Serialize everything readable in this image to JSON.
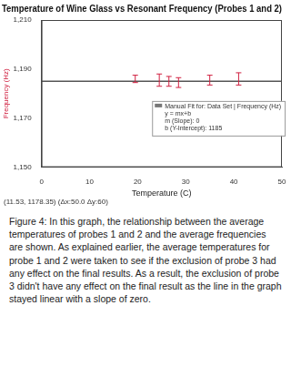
{
  "chart_data": {
    "type": "scatter",
    "title": "Temperature of Wine Glass vs Resonant Frequency (Probes 1 and 2)",
    "x_label": "Temperature (C)",
    "y_label": "Frequency (Hz)",
    "series": [
      {
        "name": "Data Set",
        "type": "scatter",
        "color": "#d02040",
        "marker": "none",
        "x": [
          19.5,
          24.5,
          26.5,
          28.5,
          35,
          41
        ],
        "values": [
          1186,
          1185.5,
          1185,
          1184.5,
          1185.5,
          1186
        ],
        "errors": [
          1.5,
          2.5,
          2,
          2,
          2,
          2.5
        ]
      },
      {
        "type": "line",
        "color": "#555555",
        "x": [
          0,
          50
        ],
        "values": [
          1185,
          1185
        ]
      }
    ],
    "xlim": [
      0,
      50
    ],
    "xticks": [
      0,
      10,
      20,
      30,
      40,
      50
    ],
    "ylim": [
      1150,
      1210
    ],
    "yticks": [
      1150,
      1170,
      1190,
      1210
    ],
    "grid": false,
    "annotations": [
      "Manual Fit for: Data Set | Frequency (Hz)",
      "y = mx+b",
      "m (Slope): 0",
      "b (Y-Intercept): 1185",
      "(11.53, 1178.35) (Δx:50.0 Δy:60)"
    ]
  },
  "caption": "Figure 4: In this graph, the relationship between the average temperatures of probes 1 and 2 and the average frequencies are shown. As explained earlier, the average temperatures for probe 1 and 2 were taken to see if the exclusion of probe 3 had any effect on the final results. As a result, the exclusion of probe 3 didn't have any effect on the final result as the line in the graph stayed linear with a slope of zero."
}
